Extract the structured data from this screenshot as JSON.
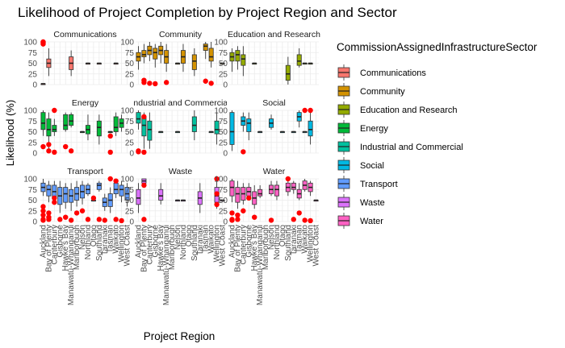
{
  "chart_data": {
    "type": "box",
    "title": "Likelihood of Project Completion by Project Region and Sector",
    "xlabel": "Project Region",
    "ylabel": "Likelihood (%)",
    "ylim": [
      0,
      100
    ],
    "yticks": [
      0,
      25,
      50,
      75,
      100
    ],
    "grid": true,
    "legend_position": "right",
    "legend_title": "CommissionAssignedInfrastructureSector",
    "regions": [
      "Auckland",
      "Bay of Plenty",
      "Canterbury",
      "Gisborne",
      "Hawke's Bay",
      "Manawatū-Whanganui",
      "Marlborough",
      "Nelson",
      "Northland",
      "Otago",
      "Southland",
      "Taranaki",
      "Tasman",
      "Waikato",
      "Wellington",
      "West Coast"
    ],
    "facets": [
      {
        "sector": "Communications",
        "label": "Communications",
        "color": "#F8766D",
        "boxes": [
          [
            0,
            2,
            2,
            2,
            2,
            2
          ],
          [
            1,
            20,
            40,
            50,
            60,
            85
          ],
          [
            5,
            20,
            35,
            50,
            65,
            80
          ],
          [
            8,
            50,
            50,
            50,
            50,
            50
          ],
          [
            10,
            50,
            50,
            50,
            50,
            50
          ],
          [
            13,
            50,
            50,
            50,
            50,
            50
          ]
        ],
        "outliers": [
          [
            0,
            95
          ],
          [
            0,
            100
          ],
          [
            0,
            98
          ]
        ]
      },
      {
        "sector": "Community",
        "label": "Community",
        "color": "#D39200",
        "boxes": [
          [
            0,
            35,
            55,
            65,
            75,
            90
          ],
          [
            1,
            50,
            65,
            70,
            80,
            95
          ],
          [
            2,
            55,
            70,
            80,
            90,
            100
          ],
          [
            3,
            40,
            60,
            75,
            85,
            95
          ],
          [
            4,
            50,
            70,
            80,
            90,
            100
          ],
          [
            5,
            30,
            50,
            65,
            80,
            95
          ],
          [
            7,
            50,
            50,
            50,
            50,
            50
          ],
          [
            8,
            30,
            50,
            65,
            80,
            95
          ],
          [
            10,
            20,
            35,
            55,
            70,
            85
          ],
          [
            12,
            60,
            80,
            90,
            95,
            100
          ],
          [
            13,
            40,
            55,
            65,
            85,
            100
          ],
          [
            15,
            50,
            50,
            50,
            50,
            50
          ]
        ],
        "outliers": [
          [
            1,
            10
          ],
          [
            1,
            5
          ],
          [
            2,
            3
          ],
          [
            3,
            2
          ],
          [
            5,
            5
          ],
          [
            12,
            8
          ],
          [
            13,
            3
          ]
        ]
      },
      {
        "sector": "Education and Research",
        "label": "Education and Research",
        "color": "#93AA00",
        "boxes": [
          [
            0,
            30,
            55,
            65,
            75,
            85
          ],
          [
            1,
            35,
            55,
            70,
            80,
            90
          ],
          [
            2,
            20,
            45,
            60,
            70,
            90
          ],
          [
            4,
            50,
            50,
            50,
            50,
            50
          ],
          [
            10,
            0,
            10,
            25,
            45,
            65
          ],
          [
            12,
            40,
            45,
            55,
            70,
            85
          ],
          [
            13,
            50,
            50,
            50,
            50,
            50
          ],
          [
            14,
            50,
            50,
            50,
            50,
            50
          ]
        ],
        "outliers": []
      },
      {
        "sector": "Energy",
        "label": "Energy",
        "color": "#00BA38",
        "boxes": [
          [
            0,
            40,
            55,
            70,
            95,
            100
          ],
          [
            1,
            10,
            40,
            55,
            80,
            95
          ],
          [
            2,
            40,
            50,
            55,
            65,
            80
          ],
          [
            4,
            50,
            55,
            65,
            90,
            95
          ],
          [
            5,
            60,
            65,
            75,
            90,
            95
          ],
          [
            7,
            50,
            50,
            50,
            50,
            50
          ],
          [
            8,
            30,
            45,
            55,
            65,
            90
          ],
          [
            10,
            20,
            40,
            60,
            75,
            90
          ],
          [
            12,
            50,
            50,
            50,
            50,
            50
          ],
          [
            13,
            40,
            50,
            60,
            85,
            95
          ],
          [
            14,
            50,
            60,
            70,
            80,
            90
          ]
        ],
        "outliers": [
          [
            0,
            15
          ],
          [
            1,
            20
          ],
          [
            1,
            5
          ],
          [
            2,
            2
          ],
          [
            2,
            100
          ],
          [
            4,
            15
          ],
          [
            5,
            5
          ],
          [
            12,
            40
          ],
          [
            12,
            2
          ]
        ]
      },
      {
        "sector": "Industrial and Commercial",
        "label": "Industrial and Commercial",
        "color": "#00C19F",
        "boxes": [
          [
            0,
            55,
            70,
            80,
            95,
            100
          ],
          [
            1,
            10,
            40,
            65,
            85,
            95
          ],
          [
            2,
            10,
            30,
            55,
            75,
            95
          ],
          [
            4,
            50,
            50,
            50,
            50,
            50
          ],
          [
            7,
            50,
            50,
            50,
            50,
            50
          ],
          [
            10,
            30,
            50,
            65,
            85,
            100
          ],
          [
            13,
            50,
            50,
            50,
            50,
            50
          ],
          [
            14,
            20,
            45,
            55,
            75,
            95
          ]
        ],
        "outliers": [
          [
            0,
            5
          ],
          [
            0,
            3
          ],
          [
            1,
            2
          ],
          [
            1,
            85
          ]
        ]
      },
      {
        "sector": "Social",
        "label": "Social",
        "color": "#00B9E3",
        "boxes": [
          [
            0,
            5,
            20,
            50,
            95,
            100
          ],
          [
            2,
            50,
            65,
            75,
            85,
            95
          ],
          [
            3,
            30,
            50,
            70,
            80,
            95
          ],
          [
            5,
            50,
            50,
            50,
            50,
            50
          ],
          [
            7,
            55,
            60,
            70,
            80,
            90
          ],
          [
            9,
            50,
            50,
            50,
            50,
            50
          ],
          [
            11,
            50,
            50,
            50,
            50,
            50
          ],
          [
            12,
            60,
            75,
            85,
            95,
            100
          ],
          [
            13,
            50,
            50,
            50,
            50,
            50
          ],
          [
            14,
            20,
            40,
            55,
            75,
            95
          ]
        ],
        "outliers": [
          [
            2,
            3
          ],
          [
            13,
            100
          ],
          [
            14,
            100
          ]
        ]
      },
      {
        "sector": "Transport",
        "label": "Transport",
        "color": "#619CFF",
        "boxes": [
          [
            0,
            60,
            70,
            80,
            90,
            100
          ],
          [
            1,
            45,
            60,
            75,
            85,
            95
          ],
          [
            2,
            40,
            55,
            70,
            85,
            95
          ],
          [
            3,
            20,
            40,
            60,
            80,
            95
          ],
          [
            4,
            30,
            45,
            65,
            80,
            90
          ],
          [
            5,
            25,
            45,
            60,
            75,
            90
          ],
          [
            6,
            35,
            50,
            65,
            80,
            95
          ],
          [
            7,
            40,
            55,
            70,
            85,
            95
          ],
          [
            8,
            60,
            65,
            75,
            85,
            90
          ],
          [
            9,
            50,
            50,
            50,
            50,
            50
          ],
          [
            10,
            70,
            75,
            85,
            90,
            95
          ],
          [
            11,
            25,
            35,
            45,
            55,
            65
          ],
          [
            12,
            20,
            35,
            50,
            65,
            80
          ],
          [
            13,
            55,
            65,
            75,
            90,
            95
          ],
          [
            14,
            45,
            60,
            75,
            85,
            95
          ],
          [
            15,
            35,
            50,
            65,
            80,
            90
          ]
        ],
        "outliers": [
          [
            0,
            5
          ],
          [
            0,
            3
          ],
          [
            0,
            15
          ],
          [
            0,
            25
          ],
          [
            0,
            35
          ],
          [
            1,
            20
          ],
          [
            1,
            10
          ],
          [
            1,
            5
          ],
          [
            2,
            45
          ],
          [
            2,
            55
          ],
          [
            3,
            5
          ],
          [
            4,
            10
          ],
          [
            5,
            3
          ],
          [
            6,
            20
          ],
          [
            7,
            25
          ],
          [
            8,
            5
          ],
          [
            9,
            55
          ],
          [
            10,
            5
          ],
          [
            11,
            3
          ],
          [
            12,
            100
          ],
          [
            13,
            95
          ],
          [
            13,
            5
          ],
          [
            14,
            2
          ]
        ]
      },
      {
        "sector": "Waste",
        "label": "Waste",
        "color": "#DB72FB",
        "boxes": [
          [
            0,
            20,
            40,
            55,
            75,
            90
          ],
          [
            1,
            85,
            90,
            95,
            100,
            100
          ],
          [
            4,
            40,
            50,
            60,
            75,
            90
          ],
          [
            7,
            50,
            50,
            50,
            50,
            50
          ],
          [
            8,
            50,
            50,
            50,
            50,
            50
          ],
          [
            11,
            20,
            40,
            55,
            70,
            90
          ],
          [
            14,
            30,
            45,
            60,
            80,
            95
          ],
          [
            15,
            50,
            50,
            50,
            50,
            50
          ]
        ],
        "outliers": [
          [
            1,
            85
          ],
          [
            1,
            5
          ],
          [
            14,
            100
          ],
          [
            14,
            65
          ],
          [
            14,
            40
          ]
        ]
      },
      {
        "sector": "Water",
        "label": "Water",
        "color": "#FF61C3",
        "boxes": [
          [
            0,
            45,
            60,
            80,
            95,
            100
          ],
          [
            1,
            30,
            45,
            65,
            80,
            95
          ],
          [
            2,
            40,
            50,
            65,
            80,
            90
          ],
          [
            3,
            50,
            60,
            70,
            80,
            90
          ],
          [
            4,
            30,
            40,
            55,
            70,
            85
          ],
          [
            5,
            55,
            60,
            65,
            75,
            85
          ],
          [
            7,
            60,
            65,
            75,
            85,
            95
          ],
          [
            8,
            50,
            60,
            75,
            85,
            95
          ],
          [
            10,
            60,
            70,
            80,
            90,
            95
          ],
          [
            11,
            65,
            75,
            80,
            90,
            95
          ],
          [
            12,
            50,
            55,
            65,
            75,
            90
          ],
          [
            13,
            70,
            75,
            85,
            95,
            100
          ],
          [
            14,
            60,
            70,
            80,
            90,
            95
          ],
          [
            15,
            50,
            50,
            50,
            50,
            50
          ]
        ],
        "outliers": [
          [
            0,
            5
          ],
          [
            0,
            3
          ],
          [
            0,
            20
          ],
          [
            1,
            15
          ],
          [
            1,
            5
          ],
          [
            2,
            25
          ],
          [
            3,
            55
          ],
          [
            4,
            10
          ],
          [
            7,
            3
          ],
          [
            10,
            100
          ],
          [
            11,
            5
          ],
          [
            12,
            20
          ],
          [
            13,
            3
          ],
          [
            14,
            2
          ]
        ]
      }
    ]
  }
}
